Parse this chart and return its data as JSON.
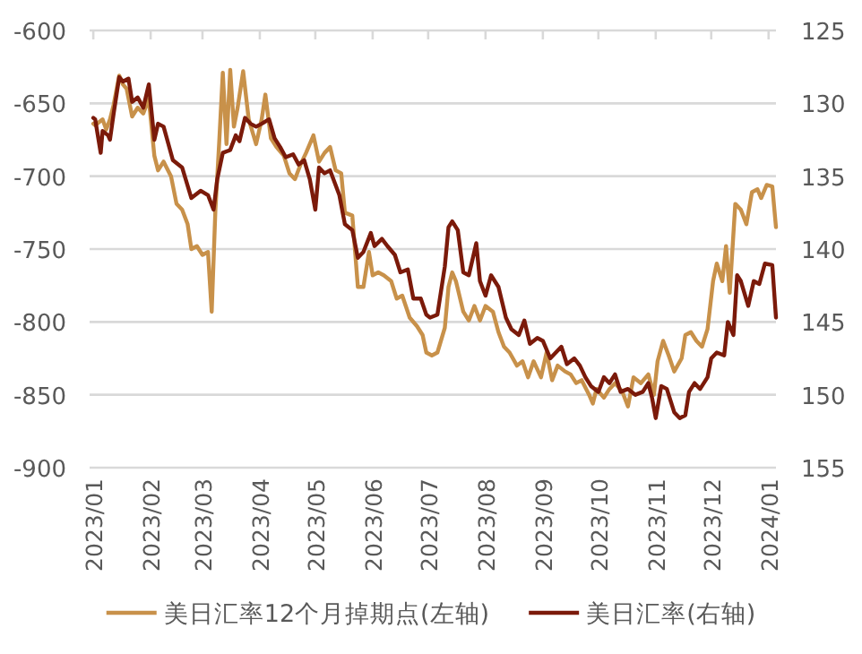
{
  "chart_data": {
    "type": "line",
    "xlim": [
      "2022-12-30",
      "2024-01-05"
    ],
    "xticks": [
      {
        "value": "2023-01-01",
        "label": "2023/01"
      },
      {
        "value": "2023-02-01",
        "label": "2023/02"
      },
      {
        "value": "2023-03-01",
        "label": "2023/03"
      },
      {
        "value": "2023-04-01",
        "label": "2023/04"
      },
      {
        "value": "2023-05-01",
        "label": "2023/05"
      },
      {
        "value": "2023-06-01",
        "label": "2023/06"
      },
      {
        "value": "2023-07-01",
        "label": "2023/07"
      },
      {
        "value": "2023-08-01",
        "label": "2023/08"
      },
      {
        "value": "2023-09-01",
        "label": "2023/09"
      },
      {
        "value": "2023-10-01",
        "label": "2023/10"
      },
      {
        "value": "2023-11-01",
        "label": "2023/11"
      },
      {
        "value": "2023-12-01",
        "label": "2023/12"
      },
      {
        "value": "2024-01-01",
        "label": "2024/01"
      }
    ],
    "ylim": [
      -900,
      -600
    ],
    "yticks": [
      -900,
      -850,
      -800,
      -750,
      -700,
      -650,
      -600
    ],
    "y2lim": [
      155,
      125
    ],
    "y2ticks": [
      125,
      130,
      135,
      140,
      145,
      150,
      155
    ],
    "grid": "y",
    "legend": "bottom",
    "series": [
      {
        "name": "美日汇率12个月掉期点(左轴)",
        "color": "#c8914a",
        "x": [
          "2023-01-01",
          "2023-01-02",
          "2023-01-06",
          "2023-01-08",
          "2023-01-10",
          "2023-01-12",
          "2023-01-15",
          "2023-01-17",
          "2023-01-19",
          "2023-01-22",
          "2023-01-25",
          "2023-01-28",
          "2023-01-31",
          "2023-02-03",
          "2023-02-05",
          "2023-02-08",
          "2023-02-12",
          "2023-02-15",
          "2023-02-18",
          "2023-02-21",
          "2023-02-23",
          "2023-02-26",
          "2023-03-01",
          "2023-03-04",
          "2023-03-06",
          "2023-03-08",
          "2023-03-10",
          "2023-03-12",
          "2023-03-14",
          "2023-03-16",
          "2023-03-18",
          "2023-03-20",
          "2023-03-23",
          "2023-03-26",
          "2023-03-30",
          "2023-04-02",
          "2023-04-04",
          "2023-04-07",
          "2023-04-10",
          "2023-04-14",
          "2023-04-17",
          "2023-04-20",
          "2023-04-23",
          "2023-04-26",
          "2023-04-30",
          "2023-05-03",
          "2023-05-06",
          "2023-05-09",
          "2023-05-12",
          "2023-05-15",
          "2023-05-17",
          "2023-05-21",
          "2023-05-24",
          "2023-05-27",
          "2023-05-30",
          "2023-06-01",
          "2023-06-04",
          "2023-06-07",
          "2023-06-11",
          "2023-06-14",
          "2023-06-17",
          "2023-06-21",
          "2023-06-25",
          "2023-06-28",
          "2023-06-30",
          "2023-07-03",
          "2023-07-06",
          "2023-07-10",
          "2023-07-12",
          "2023-07-14",
          "2023-07-16",
          "2023-07-20",
          "2023-07-23",
          "2023-07-26",
          "2023-07-29",
          "2023-08-01",
          "2023-08-05",
          "2023-08-08",
          "2023-08-11",
          "2023-08-14",
          "2023-08-18",
          "2023-08-21",
          "2023-08-24",
          "2023-08-27",
          "2023-08-31",
          "2023-09-03",
          "2023-09-06",
          "2023-09-09",
          "2023-09-13",
          "2023-09-16",
          "2023-09-19",
          "2023-09-22",
          "2023-09-26",
          "2023-09-28",
          "2023-09-30",
          "2023-10-04",
          "2023-10-07",
          "2023-10-10",
          "2023-10-14",
          "2023-10-17",
          "2023-10-20",
          "2023-10-24",
          "2023-10-28",
          "2023-10-31",
          "2023-11-02",
          "2023-11-05",
          "2023-11-08",
          "2023-11-11",
          "2023-11-15",
          "2023-11-17",
          "2023-11-20",
          "2023-11-23",
          "2023-11-26",
          "2023-11-29",
          "2023-12-02",
          "2023-12-04",
          "2023-12-07",
          "2023-12-09",
          "2023-12-11",
          "2023-12-14",
          "2023-12-17",
          "2023-12-20",
          "2023-12-23",
          "2023-12-26",
          "2023-12-28",
          "2023-12-31",
          "2024-01-03",
          "2024-01-05"
        ],
        "values": [
          -664,
          -665,
          -661,
          -668,
          -661,
          -651,
          -631,
          -637,
          -640,
          -659,
          -653,
          -657,
          -647,
          -686,
          -696,
          -690,
          -700,
          -719,
          -723,
          -733,
          -750,
          -748,
          -754,
          -752,
          -793,
          -723,
          -678,
          -629,
          -678,
          -627,
          -666,
          -653,
          -628,
          -661,
          -678,
          -661,
          -644,
          -674,
          -680,
          -686,
          -698,
          -702,
          -692,
          -684,
          -672,
          -690,
          -684,
          -680,
          -696,
          -698,
          -725,
          -727,
          -776,
          -776,
          -752,
          -768,
          -766,
          -768,
          -772,
          -784,
          -782,
          -797,
          -803,
          -809,
          -821,
          -823,
          -821,
          -804,
          -776,
          -766,
          -772,
          -793,
          -799,
          -789,
          -799,
          -789,
          -793,
          -807,
          -817,
          -821,
          -830,
          -827,
          -838,
          -827,
          -838,
          -821,
          -840,
          -830,
          -834,
          -836,
          -842,
          -840,
          -850,
          -856,
          -846,
          -852,
          -846,
          -842,
          -848,
          -858,
          -838,
          -842,
          -836,
          -850,
          -827,
          -813,
          -823,
          -834,
          -825,
          -809,
          -807,
          -813,
          -817,
          -805,
          -772,
          -760,
          -772,
          -748,
          -780,
          -719,
          -723,
          -733,
          -711,
          -709,
          -715,
          -706,
          -707,
          -735
        ]
      },
      {
        "name": "美日汇率(右轴)",
        "color": "#7b1a0a",
        "axis": "y2",
        "x": [
          "2023-01-01",
          "2023-01-02",
          "2023-01-05",
          "2023-01-06",
          "2023-01-09",
          "2023-01-10",
          "2023-01-12",
          "2023-01-15",
          "2023-01-17",
          "2023-01-20",
          "2023-01-22",
          "2023-01-25",
          "2023-01-28",
          "2023-01-31",
          "2023-02-03",
          "2023-02-05",
          "2023-02-08",
          "2023-02-13",
          "2023-02-18",
          "2023-02-23",
          "2023-02-28",
          "2023-03-04",
          "2023-03-07",
          "2023-03-09",
          "2023-03-12",
          "2023-03-16",
          "2023-03-19",
          "2023-03-21",
          "2023-03-24",
          "2023-03-27",
          "2023-03-30",
          "2023-04-02",
          "2023-04-06",
          "2023-04-09",
          "2023-04-12",
          "2023-04-15",
          "2023-04-19",
          "2023-04-22",
          "2023-04-25",
          "2023-04-28",
          "2023-05-01",
          "2023-05-03",
          "2023-05-06",
          "2023-05-09",
          "2023-05-14",
          "2023-05-17",
          "2023-05-21",
          "2023-05-24",
          "2023-05-27",
          "2023-05-31",
          "2023-06-02",
          "2023-06-06",
          "2023-06-09",
          "2023-06-13",
          "2023-06-16",
          "2023-06-20",
          "2023-06-23",
          "2023-06-27",
          "2023-06-30",
          "2023-07-02",
          "2023-07-06",
          "2023-07-10",
          "2023-07-12",
          "2023-07-14",
          "2023-07-17",
          "2023-07-20",
          "2023-07-23",
          "2023-07-27",
          "2023-07-29",
          "2023-08-01",
          "2023-08-04",
          "2023-08-08",
          "2023-08-12",
          "2023-08-15",
          "2023-08-19",
          "2023-08-22",
          "2023-08-25",
          "2023-08-29",
          "2023-09-01",
          "2023-09-05",
          "2023-09-08",
          "2023-09-11",
          "2023-09-14",
          "2023-09-18",
          "2023-09-21",
          "2023-09-24",
          "2023-09-27",
          "2023-10-01",
          "2023-10-04",
          "2023-10-07",
          "2023-10-10",
          "2023-10-13",
          "2023-10-17",
          "2023-10-21",
          "2023-10-25",
          "2023-10-28",
          "2023-10-30",
          "2023-11-01",
          "2023-11-04",
          "2023-11-07",
          "2023-11-11",
          "2023-11-14",
          "2023-11-17",
          "2023-11-19",
          "2023-11-22",
          "2023-11-25",
          "2023-11-29",
          "2023-12-01",
          "2023-12-04",
          "2023-12-08",
          "2023-12-10",
          "2023-12-13",
          "2023-12-15",
          "2023-12-17",
          "2023-12-21",
          "2023-12-24",
          "2023-12-27",
          "2023-12-30",
          "2024-01-03",
          "2024-01-05"
        ],
        "values": [
          131.0,
          131.1,
          133.4,
          131.9,
          132.2,
          132.5,
          130.7,
          128.2,
          128.5,
          128.3,
          129.9,
          129.6,
          130.3,
          128.7,
          132.5,
          131.4,
          131.6,
          133.9,
          134.4,
          136.5,
          136.0,
          136.3,
          137.3,
          135.2,
          133.4,
          133.2,
          132.2,
          132.6,
          131.0,
          131.4,
          131.6,
          131.4,
          131.1,
          132.4,
          133.0,
          133.7,
          133.5,
          134.2,
          133.9,
          135.2,
          137.3,
          134.4,
          134.8,
          134.6,
          136.3,
          138.3,
          138.7,
          140.6,
          140.2,
          138.9,
          139.8,
          139.3,
          139.8,
          140.4,
          141.6,
          141.4,
          143.4,
          143.4,
          144.5,
          144.7,
          144.5,
          141.2,
          138.5,
          138.1,
          138.7,
          141.6,
          141.8,
          139.6,
          142.2,
          143.2,
          141.8,
          142.6,
          144.7,
          145.5,
          145.9,
          144.9,
          146.5,
          146.1,
          146.3,
          147.5,
          147.1,
          146.7,
          147.9,
          147.5,
          148.0,
          148.8,
          149.4,
          149.8,
          148.8,
          149.2,
          148.6,
          149.8,
          149.6,
          150.0,
          149.8,
          149.2,
          150.2,
          151.6,
          149.4,
          149.6,
          151.2,
          151.6,
          151.4,
          149.8,
          149.2,
          149.6,
          148.8,
          147.5,
          147.1,
          147.3,
          145.0,
          145.9,
          141.8,
          142.2,
          143.9,
          142.2,
          142.4,
          141.0,
          141.1,
          144.7
        ]
      }
    ]
  }
}
